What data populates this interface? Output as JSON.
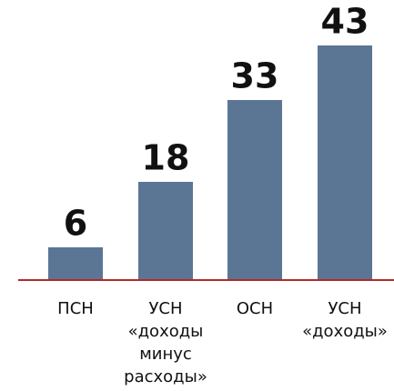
{
  "chart_data": {
    "type": "bar",
    "categories": [
      [
        "ПСН"
      ],
      [
        "УСН",
        "«доходы",
        "минус",
        "расходы»"
      ],
      [
        "ОСН"
      ],
      [
        "УСН",
        "«доходы»"
      ]
    ],
    "values": [
      6,
      18,
      33,
      43
    ],
    "color": "#5b7595",
    "baseline_color": "#b22a2a"
  }
}
